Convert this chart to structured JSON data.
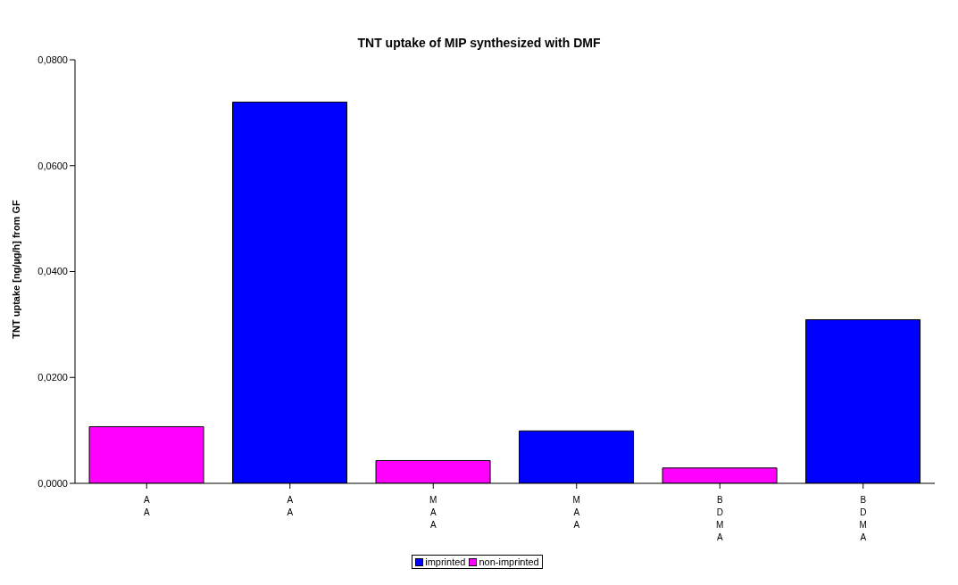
{
  "chart_data": {
    "type": "bar",
    "title": "TNT uptake of MIP synthesized with DMF",
    "ylabel": "TNT uptake [ng/µg/h] from GF",
    "categories": [
      "AA",
      "AA",
      "MAA",
      "MAA",
      "BDMA",
      "BDMA"
    ],
    "stacked": true,
    "series": [
      {
        "name": "non-imprinted",
        "color": "#ff00ff",
        "values": [
          0.0107,
          null,
          0.0043,
          null,
          0.0029,
          null
        ]
      },
      {
        "name": "imprinted",
        "color": "#0000ff",
        "values": [
          null,
          0.072,
          null,
          0.0099,
          null,
          0.0309
        ]
      }
    ],
    "ylim": [
      0,
      0.08
    ],
    "yticks": [
      {
        "value": 0,
        "label": "0,0000"
      },
      {
        "value": 0.02,
        "label": "0,0200"
      },
      {
        "value": 0.04,
        "label": "0,0400"
      },
      {
        "value": 0.06,
        "label": "0,0600"
      },
      {
        "value": 0.08,
        "label": "0,0800"
      }
    ],
    "grid": false,
    "legend": "bottom"
  }
}
